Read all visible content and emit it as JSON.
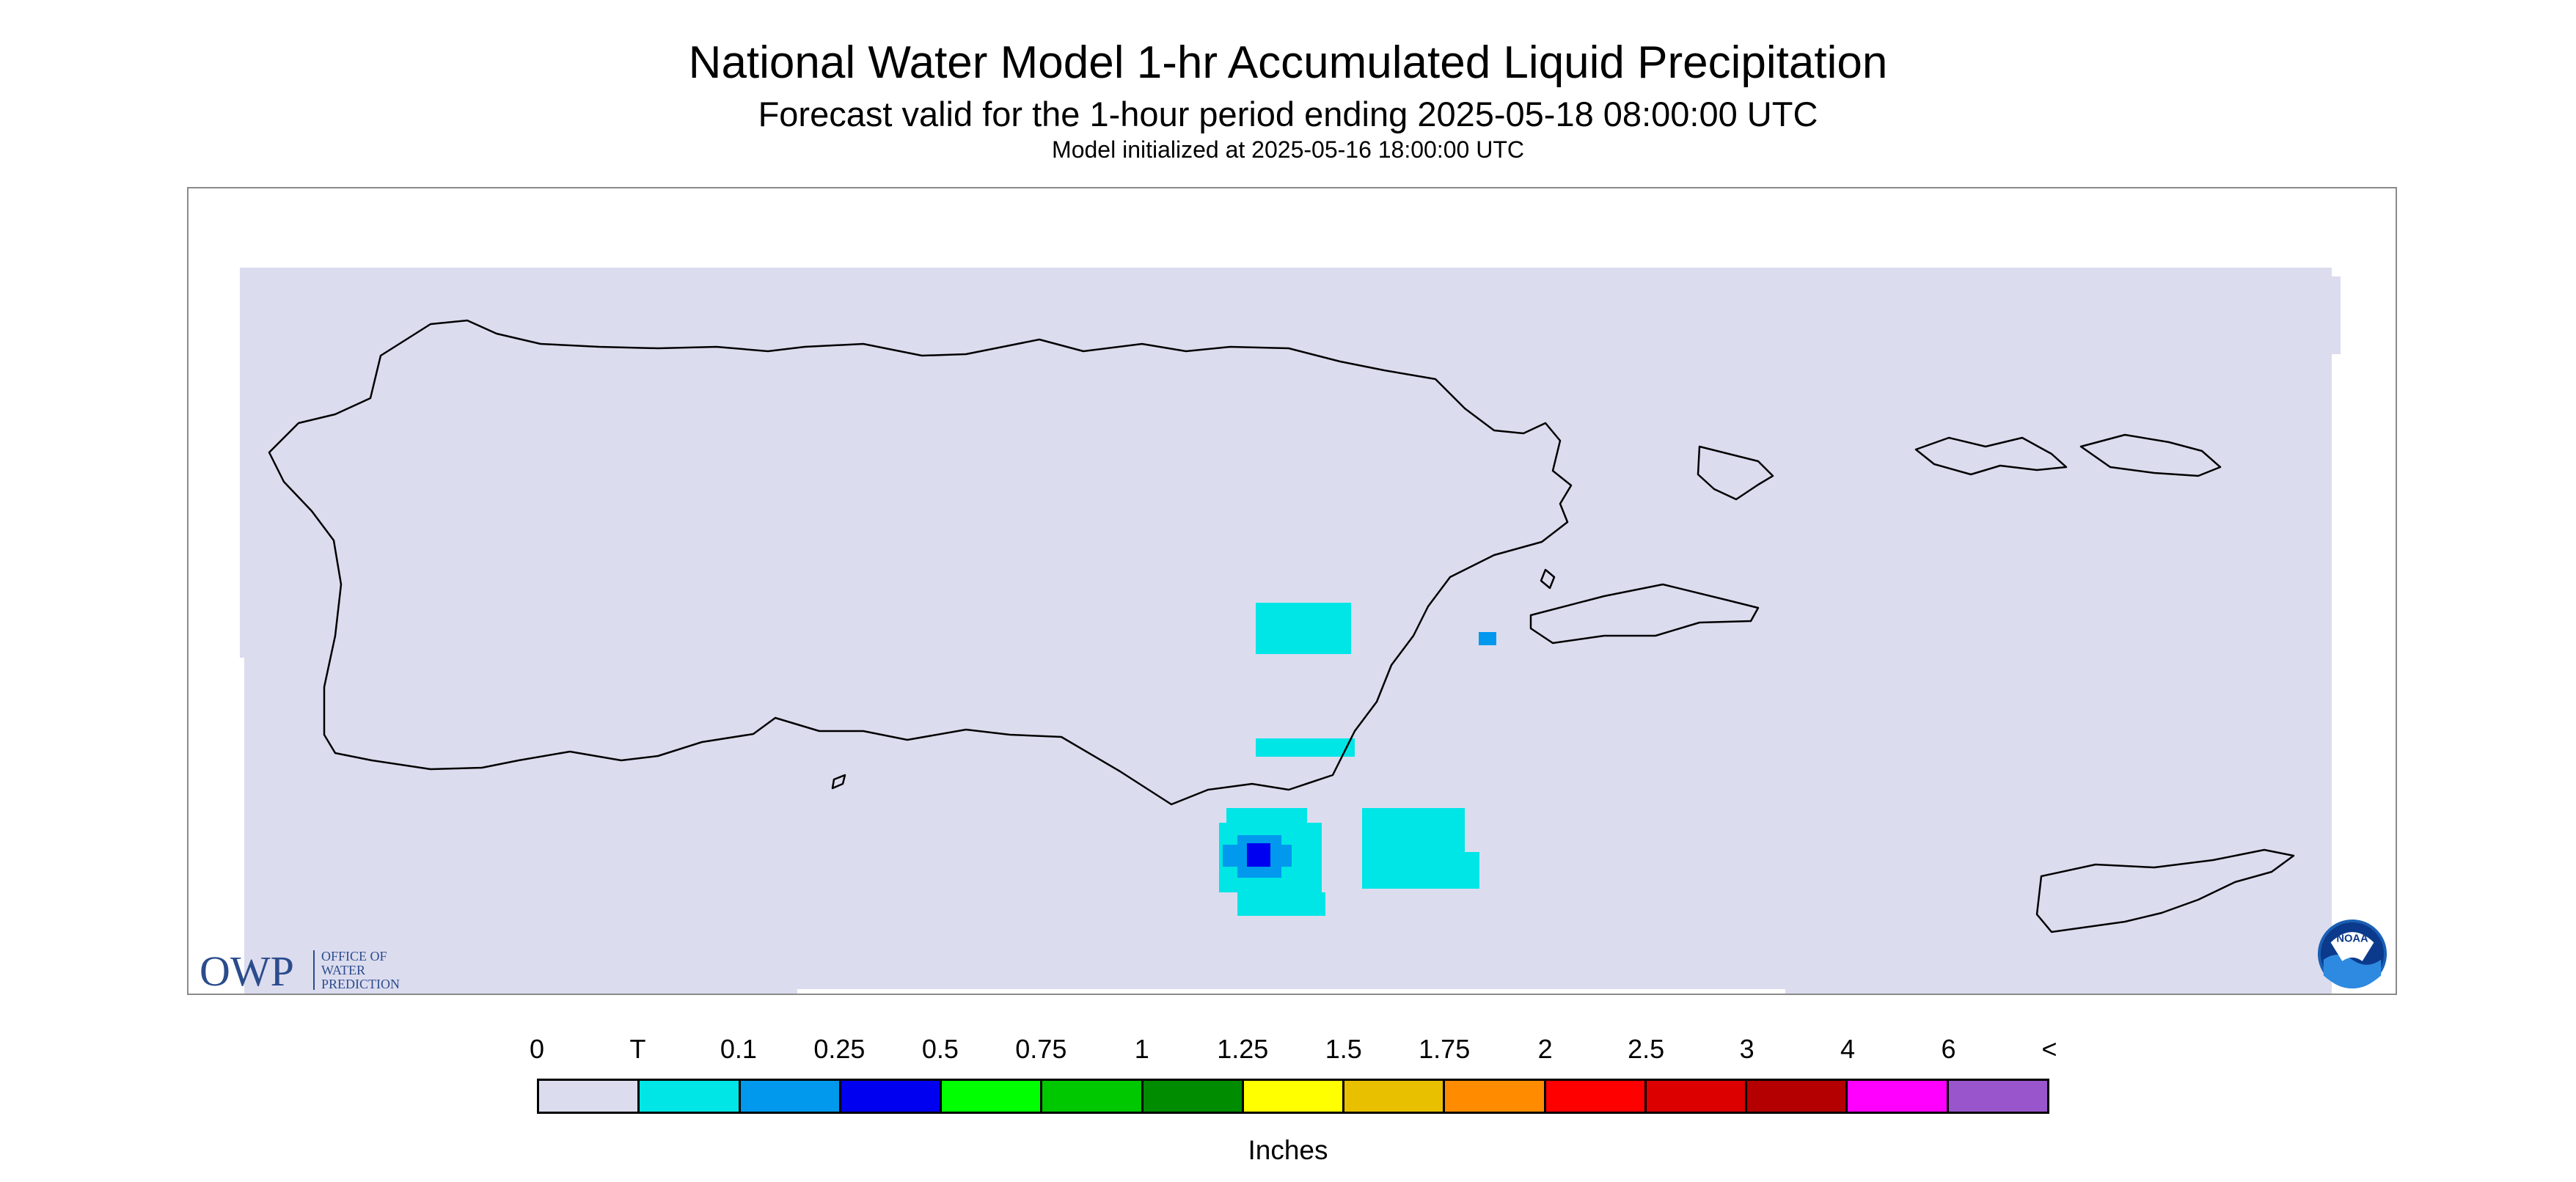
{
  "title": "National Water Model 1-hr Accumulated Liquid Precipitation",
  "subtitle": "Forecast valid for the 1-hour period ending 2025-05-18 08:00:00 UTC",
  "init_line": "Model initialized at 2025-05-16 18:00:00 UTC",
  "map": {
    "background_color": "#dcdcef",
    "coast_color": "#000000",
    "precip_colors": {
      "trace": "#00e5e5",
      "tenth": "#0099ee",
      "quarter": "#0000f0"
    }
  },
  "owp_logo": {
    "mark": "OWP",
    "words": [
      "OFFICE OF",
      "WATER",
      "PREDICTION"
    ],
    "color": "#2b4c8c"
  },
  "noaa_logo": {
    "text": "NOAA"
  },
  "legend": {
    "labels": [
      "0",
      "T",
      "0.1",
      "0.25",
      "0.5",
      "0.75",
      "1",
      "1.25",
      "1.5",
      "1.75",
      "2",
      "2.5",
      "3",
      "4",
      "6",
      "<"
    ],
    "colors": [
      "#dcdcef",
      "#00e5e5",
      "#0099ee",
      "#0000f0",
      "#00ff00",
      "#00c800",
      "#008c00",
      "#ffff00",
      "#e8c000",
      "#ff8c00",
      "#ff0000",
      "#dc0000",
      "#b40000",
      "#ff00ff",
      "#9955cc"
    ],
    "units": "Inches"
  }
}
